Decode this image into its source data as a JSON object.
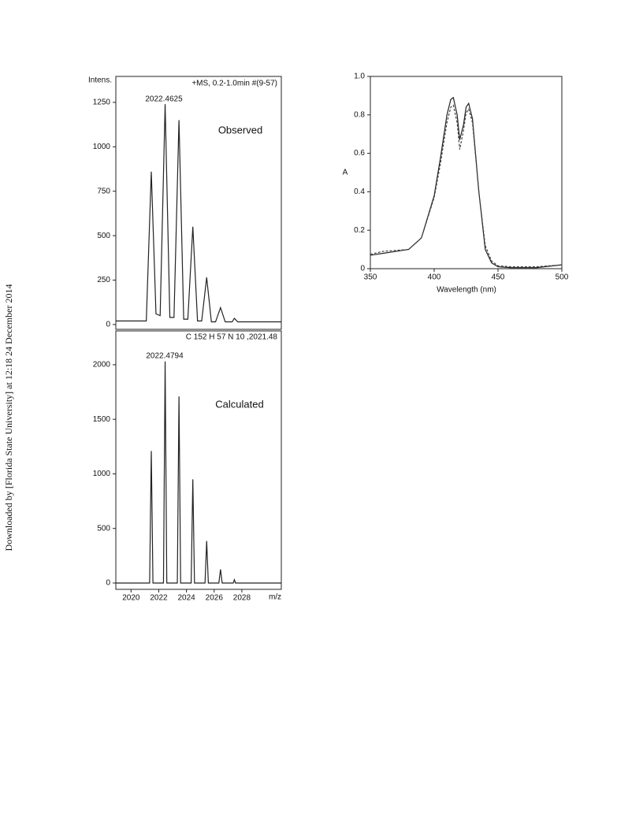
{
  "side_note": "Downloaded by [Florida State University] at 12:18 24 December 2014",
  "chart_data": [
    {
      "type": "line",
      "title": "+MS, 0.2-1.0min #(9-57)",
      "ylabel": "Intens.",
      "annotations": [
        "2022.4625",
        "Observed"
      ],
      "xlim": [
        2018.9,
        2030.85
      ],
      "ylim": [
        -27,
        1396
      ],
      "yticks": [
        0,
        250,
        500,
        750,
        1000,
        1250
      ],
      "x": [
        2018.9,
        2021.1,
        2021.46,
        2021.8,
        2022.1,
        2022.46,
        2022.8,
        2023.1,
        2023.46,
        2023.8,
        2024.1,
        2024.46,
        2024.8,
        2025.1,
        2025.46,
        2025.8,
        2026.1,
        2026.46,
        2026.8,
        2027.3,
        2027.46,
        2027.7,
        2030.85
      ],
      "series": [
        {
          "color": "#222222",
          "style": "solid",
          "values": [
            20,
            20,
            860,
            60,
            50,
            1240,
            40,
            40,
            1150,
            30,
            30,
            550,
            20,
            20,
            265,
            15,
            15,
            95,
            15,
            15,
            35,
            15,
            15
          ]
        }
      ]
    },
    {
      "type": "line",
      "title": "C 152 H 57 N 10 ,2021.48",
      "xlabel": "m/z",
      "annotations": [
        "2022.4794",
        "Calculated"
      ],
      "xlim": [
        2018.9,
        2030.85
      ],
      "ylim": [
        -58,
        2310
      ],
      "yticks": [
        0,
        500,
        1000,
        1500,
        2000
      ],
      "xticks": [
        2020,
        2022,
        2024,
        2026,
        2028
      ],
      "x": [
        2018.9,
        2021.34,
        2021.46,
        2021.58,
        2022.34,
        2022.46,
        2022.58,
        2023.34,
        2023.46,
        2023.58,
        2024.34,
        2024.46,
        2024.58,
        2025.34,
        2025.46,
        2025.58,
        2026.34,
        2026.46,
        2026.58,
        2027.38,
        2027.46,
        2027.54,
        2030.85
      ],
      "series": [
        {
          "color": "#222222",
          "style": "solid",
          "values": [
            0,
            0,
            1210,
            0,
            0,
            2030,
            0,
            0,
            1710,
            0,
            0,
            950,
            0,
            0,
            385,
            0,
            0,
            125,
            0,
            0,
            30,
            0,
            0
          ]
        }
      ]
    },
    {
      "type": "line",
      "xlabel": "Wavelength (nm)",
      "ylabel": "A",
      "xlim": [
        350,
        500
      ],
      "ylim": [
        0,
        1
      ],
      "xticks": [
        350,
        400,
        450,
        500
      ],
      "yticks": [
        0,
        0.2,
        0.4,
        0.6,
        0.8,
        {
          "value": 1,
          "label": "1.0"
        }
      ],
      "x": [
        350,
        360,
        370,
        380,
        390,
        400,
        405,
        410,
        413,
        415,
        418,
        420,
        423,
        425,
        427,
        430,
        435,
        440,
        445,
        450,
        460,
        480,
        500
      ],
      "series": [
        {
          "color": "#222222",
          "style": "solid",
          "values": [
            0.07,
            0.08,
            0.09,
            0.1,
            0.16,
            0.38,
            0.58,
            0.8,
            0.88,
            0.89,
            0.8,
            0.67,
            0.75,
            0.84,
            0.86,
            0.78,
            0.4,
            0.1,
            0.03,
            0.01,
            0.005,
            0.005,
            0.02
          ]
        },
        {
          "color": "#444444",
          "style": "dashed",
          "values": [
            0.075,
            0.09,
            0.095,
            0.1,
            0.16,
            0.37,
            0.55,
            0.76,
            0.84,
            0.85,
            0.76,
            0.62,
            0.72,
            0.81,
            0.83,
            0.76,
            0.4,
            0.12,
            0.04,
            0.015,
            0.01,
            0.01,
            0.02
          ]
        }
      ]
    }
  ]
}
